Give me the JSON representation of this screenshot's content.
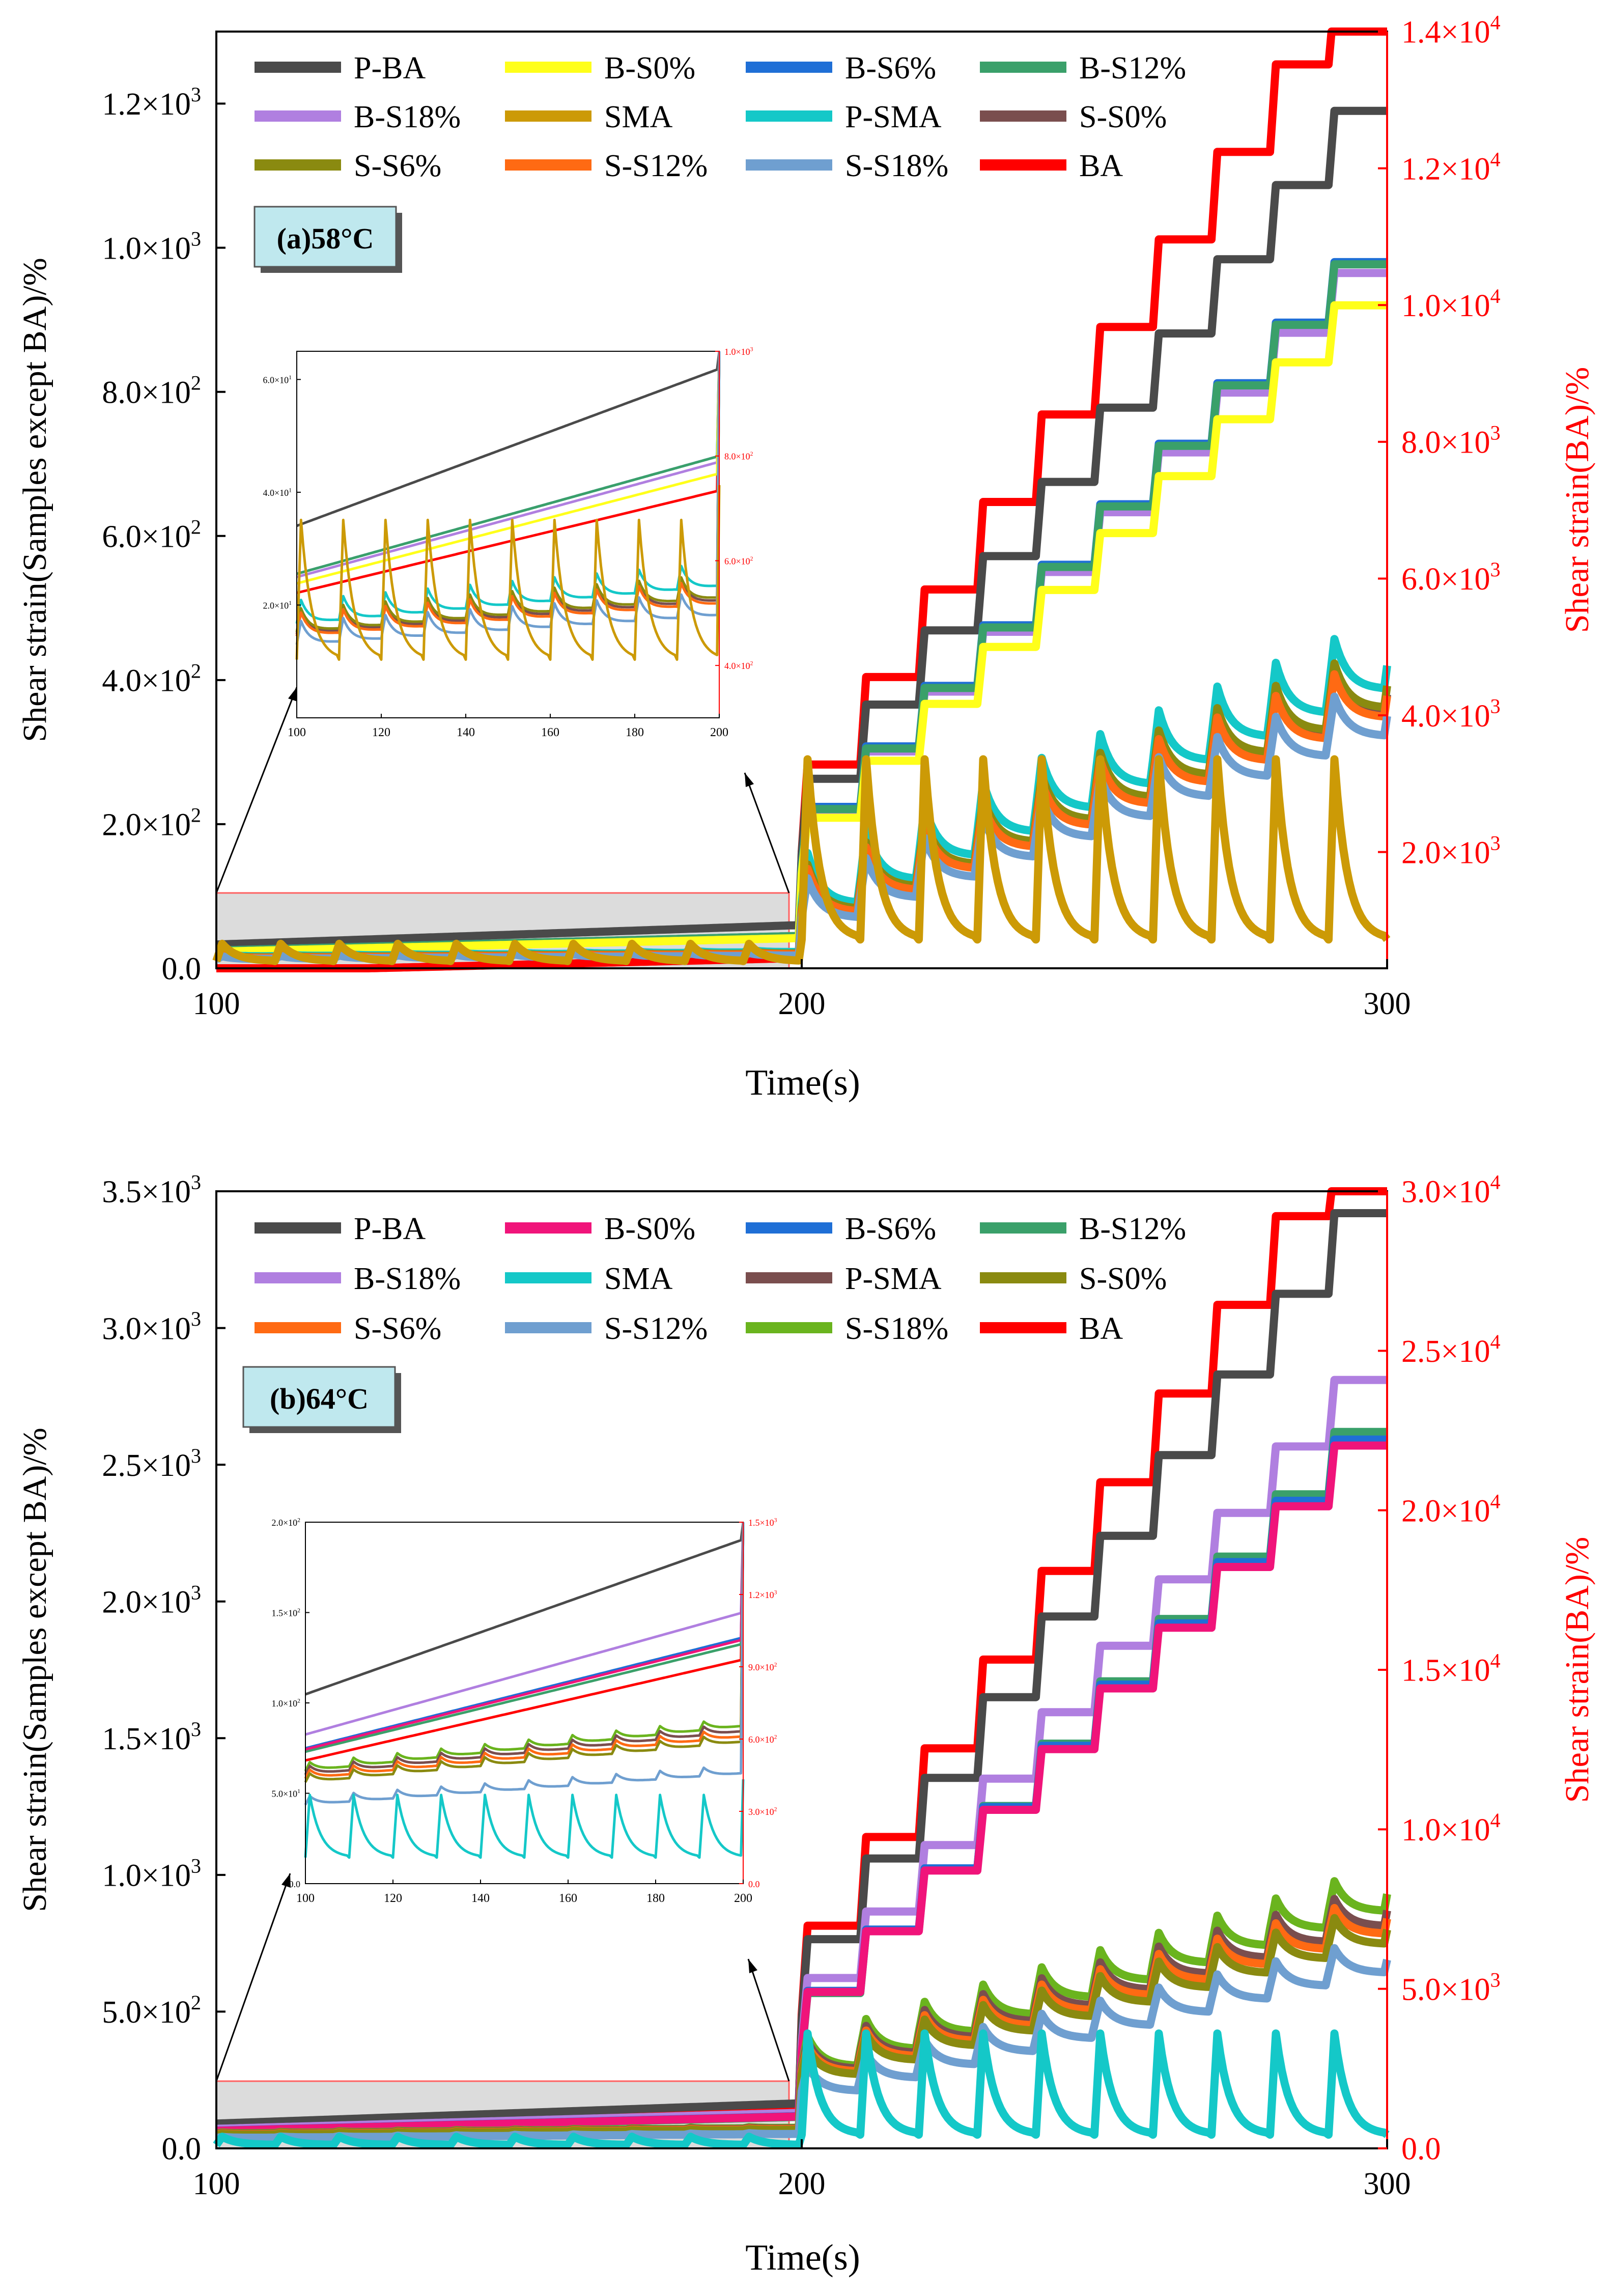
{
  "chart_data": [
    {
      "panel_label": "(a)58°C",
      "type": "line",
      "xlabel": "Time(s)",
      "ylabel": "Shear strain(Samples except BA)/%",
      "y2label": "Shear strain(BA)/%",
      "xlim": [
        100,
        300
      ],
      "ylim": [
        0,
        1300
      ],
      "y2lim": [
        300,
        14000
      ],
      "x_ticks": [
        "100",
        "200",
        "300"
      ],
      "y_ticks": [
        {
          "value": 0,
          "mant": "0.0",
          "exp": ""
        },
        {
          "value": 200,
          "mant": "2.0×10",
          "exp": "2"
        },
        {
          "value": 400,
          "mant": "4.0×10",
          "exp": "2"
        },
        {
          "value": 600,
          "mant": "6.0×10",
          "exp": "2"
        },
        {
          "value": 800,
          "mant": "8.0×10",
          "exp": "2"
        },
        {
          "value": 1000,
          "mant": "1.0×10",
          "exp": "3"
        },
        {
          "value": 1200,
          "mant": "1.2×10",
          "exp": "3"
        }
      ],
      "y2_ticks": [
        {
          "value": 2000,
          "mant": "2.0×10",
          "exp": "3"
        },
        {
          "value": 4000,
          "mant": "4.0×10",
          "exp": "3"
        },
        {
          "value": 6000,
          "mant": "6.0×10",
          "exp": "3"
        },
        {
          "value": 8000,
          "mant": "8.0×10",
          "exp": "3"
        },
        {
          "value": 10000,
          "mant": "1.0×10",
          "exp": "4"
        },
        {
          "value": 12000,
          "mant": "1.2×10",
          "exp": "4"
        },
        {
          "value": 14000,
          "mant": "1.4×10",
          "exp": "4"
        }
      ],
      "legend": [
        {
          "name": "P-BA",
          "color": "#4a4a4a"
        },
        {
          "name": "B-S0%",
          "color": "#ffff1a"
        },
        {
          "name": "B-S6%",
          "color": "#1f6fd6"
        },
        {
          "name": "B-S12%",
          "color": "#3aa06a"
        },
        {
          "name": "B-S18%",
          "color": "#b07fe0"
        },
        {
          "name": "SMA",
          "color": "#cc9a06"
        },
        {
          "name": "P-SMA",
          "color": "#14c8c8"
        },
        {
          "name": "S-S0%",
          "color": "#7a4e4e"
        },
        {
          "name": "S-S6%",
          "color": "#8a8a10"
        },
        {
          "name": "S-S12%",
          "color": "#ff6a13"
        },
        {
          "name": "S-S18%",
          "color": "#6f9fd0"
        },
        {
          "name": "BA",
          "color": "#ff0000"
        }
      ],
      "series": [
        {
          "name": "BA",
          "axis": "right",
          "kind": "step",
          "color": "#ff0000",
          "start": 2000,
          "step": 1280,
          "pre": 450
        },
        {
          "name": "P-BA",
          "kind": "step",
          "color": "#4a4a4a",
          "start": 160,
          "step": 103,
          "pre": 60
        },
        {
          "name": "B-S6%",
          "kind": "step",
          "color": "#1f6fd6",
          "start": 140,
          "step": 84,
          "pre": 45
        },
        {
          "name": "B-S18%",
          "kind": "step",
          "color": "#b07fe0",
          "start": 135,
          "step": 83,
          "pre": 44
        },
        {
          "name": "B-S12%",
          "kind": "step",
          "color": "#3aa06a",
          "start": 137,
          "step": 84,
          "pre": 45
        },
        {
          "name": "B-S0%",
          "kind": "step",
          "color": "#ffff1a",
          "start": 130,
          "step": 79,
          "pre": 42
        },
        {
          "name": "P-SMA",
          "kind": "spike",
          "color": "#14c8c8",
          "base": 90,
          "growth": 33,
          "amp": 70
        },
        {
          "name": "S-S0%",
          "kind": "spike",
          "color": "#7a4e4e",
          "base": 80,
          "growth": 30,
          "amp": 62
        },
        {
          "name": "S-S6%",
          "kind": "spike",
          "color": "#8a8a10",
          "base": 82,
          "growth": 31,
          "amp": 62
        },
        {
          "name": "S-S12%",
          "kind": "spike",
          "color": "#ff6a13",
          "base": 78,
          "growth": 30,
          "amp": 60
        },
        {
          "name": "S-S18%",
          "kind": "spike",
          "color": "#6f9fd0",
          "base": 70,
          "growth": 28,
          "amp": 55
        },
        {
          "name": "SMA",
          "kind": "sma",
          "color": "#cc9a06",
          "peak": 290,
          "low": 40
        }
      ],
      "inset": {
        "xlim": [
          100,
          200
        ],
        "ylim": [
          0,
          65
        ],
        "y2lim": [
          300,
          1000
        ],
        "x_ticks": [
          "100",
          "120",
          "140",
          "160",
          "180",
          "200"
        ],
        "y_ticks": [
          {
            "value": 20,
            "mant": "2.0×10",
            "exp": "1"
          },
          {
            "value": 40,
            "mant": "4.0×10",
            "exp": "1"
          },
          {
            "value": 60,
            "mant": "6.0×10",
            "exp": "1"
          }
        ],
        "y2_ticks": [
          {
            "value": 400,
            "mant": "4.0×10",
            "exp": "2"
          },
          {
            "value": 600,
            "mant": "6.0×10",
            "exp": "2"
          },
          {
            "value": 800,
            "mant": "8.0×10",
            "exp": "2"
          },
          {
            "value": 1000,
            "mant": "1.0×10",
            "exp": "3"
          }
        ]
      }
    },
    {
      "panel_label": "(b)64°C",
      "type": "line",
      "xlabel": "Time(s)",
      "ylabel": "Shear strain(Samples except BA)/%",
      "y2label": "Shear strain(BA)/%",
      "xlim": [
        100,
        300
      ],
      "ylim": [
        0,
        3500
      ],
      "y2lim": [
        0,
        30000
      ],
      "x_ticks": [
        "100",
        "200",
        "300"
      ],
      "y_ticks": [
        {
          "value": 0,
          "mant": "0.0",
          "exp": ""
        },
        {
          "value": 500,
          "mant": "5.0×10",
          "exp": "2"
        },
        {
          "value": 1000,
          "mant": "1.0×10",
          "exp": "3"
        },
        {
          "value": 1500,
          "mant": "1.5×10",
          "exp": "3"
        },
        {
          "value": 2000,
          "mant": "2.0×10",
          "exp": "3"
        },
        {
          "value": 2500,
          "mant": "2.5×10",
          "exp": "3"
        },
        {
          "value": 3000,
          "mant": "3.0×10",
          "exp": "3"
        },
        {
          "value": 3500,
          "mant": "3.5×10",
          "exp": "3"
        }
      ],
      "y2_ticks": [
        {
          "value": 0,
          "mant": "0.0",
          "exp": ""
        },
        {
          "value": 5000,
          "mant": "5.0×10",
          "exp": "3"
        },
        {
          "value": 10000,
          "mant": "1.0×10",
          "exp": "4"
        },
        {
          "value": 15000,
          "mant": "1.5×10",
          "exp": "4"
        },
        {
          "value": 20000,
          "mant": "2.0×10",
          "exp": "4"
        },
        {
          "value": 25000,
          "mant": "2.5×10",
          "exp": "4"
        },
        {
          "value": 30000,
          "mant": "3.0×10",
          "exp": "4"
        }
      ],
      "legend": [
        {
          "name": "P-BA",
          "color": "#4a4a4a"
        },
        {
          "name": "B-S0%",
          "color": "#f0147a"
        },
        {
          "name": "B-S6%",
          "color": "#1f6fd6"
        },
        {
          "name": "B-S12%",
          "color": "#3aa06a"
        },
        {
          "name": "B-S18%",
          "color": "#b07fe0"
        },
        {
          "name": "SMA",
          "color": "#14c8c8"
        },
        {
          "name": "P-SMA",
          "color": "#7a4e4e"
        },
        {
          "name": "S-S0%",
          "color": "#8a8a10"
        },
        {
          "name": "S-S6%",
          "color": "#ff6a13"
        },
        {
          "name": "S-S12%",
          "color": "#6f9fd0"
        },
        {
          "name": "S-S18%",
          "color": "#6ab41e"
        },
        {
          "name": "BA",
          "color": "#ff0000"
        }
      ],
      "series": [
        {
          "name": "BA",
          "axis": "right",
          "kind": "step",
          "color": "#ff0000",
          "start": 4200,
          "step": 2780,
          "pre": 1350
        },
        {
          "name": "P-BA",
          "kind": "step",
          "color": "#4a4a4a",
          "start": 470,
          "step": 295,
          "pre": 165
        },
        {
          "name": "B-S18%",
          "kind": "step",
          "color": "#b07fe0",
          "start": 380,
          "step": 243,
          "pre": 130
        },
        {
          "name": "B-S12%",
          "kind": "step",
          "color": "#3aa06a",
          "start": 340,
          "step": 228,
          "pre": 115
        },
        {
          "name": "B-S6%",
          "kind": "step",
          "color": "#1f6fd6",
          "start": 352,
          "step": 224,
          "pre": 118
        },
        {
          "name": "B-S0%",
          "kind": "step",
          "color": "#f0147a",
          "start": 350,
          "step": 222,
          "pre": 117
        },
        {
          "name": "S-S18%",
          "kind": "spike",
          "color": "#6ab41e",
          "base": 300,
          "growth": 63,
          "amp": 110
        },
        {
          "name": "P-SMA",
          "kind": "spike",
          "color": "#7a4e4e",
          "base": 290,
          "growth": 58,
          "amp": 100
        },
        {
          "name": "S-S6%",
          "kind": "spike",
          "color": "#ff6a13",
          "base": 280,
          "growth": 56,
          "amp": 95
        },
        {
          "name": "S-S0%",
          "kind": "spike",
          "color": "#8a8a10",
          "base": 270,
          "growth": 53,
          "amp": 95
        },
        {
          "name": "S-S12%",
          "kind": "spike",
          "color": "#6f9fd0",
          "base": 210,
          "growth": 48,
          "amp": 90
        },
        {
          "name": "SMA",
          "kind": "sma",
          "color": "#14c8c8",
          "peak": 420,
          "low": 50
        }
      ],
      "inset": {
        "xlim": [
          100,
          200
        ],
        "ylim": [
          0,
          200
        ],
        "y2lim": [
          0,
          1500
        ],
        "x_ticks": [
          "100",
          "120",
          "140",
          "160",
          "180",
          "200"
        ],
        "y_ticks": [
          {
            "value": 0,
            "mant": "0.0",
            "exp": ""
          },
          {
            "value": 50,
            "mant": "5.0×10",
            "exp": "1"
          },
          {
            "value": 100,
            "mant": "1.0×10",
            "exp": "2"
          },
          {
            "value": 150,
            "mant": "1.5×10",
            "exp": "2"
          },
          {
            "value": 200,
            "mant": "2.0×10",
            "exp": "2"
          }
        ],
        "y2_ticks": [
          {
            "value": 0,
            "mant": "0.0",
            "exp": ""
          },
          {
            "value": 300,
            "mant": "3.0×10",
            "exp": "2"
          },
          {
            "value": 600,
            "mant": "6.0×10",
            "exp": "2"
          },
          {
            "value": 900,
            "mant": "9.0×10",
            "exp": "2"
          },
          {
            "value": 1200,
            "mant": "1.2×10",
            "exp": "3"
          },
          {
            "value": 1500,
            "mant": "1.5×10",
            "exp": "3"
          }
        ]
      }
    }
  ]
}
